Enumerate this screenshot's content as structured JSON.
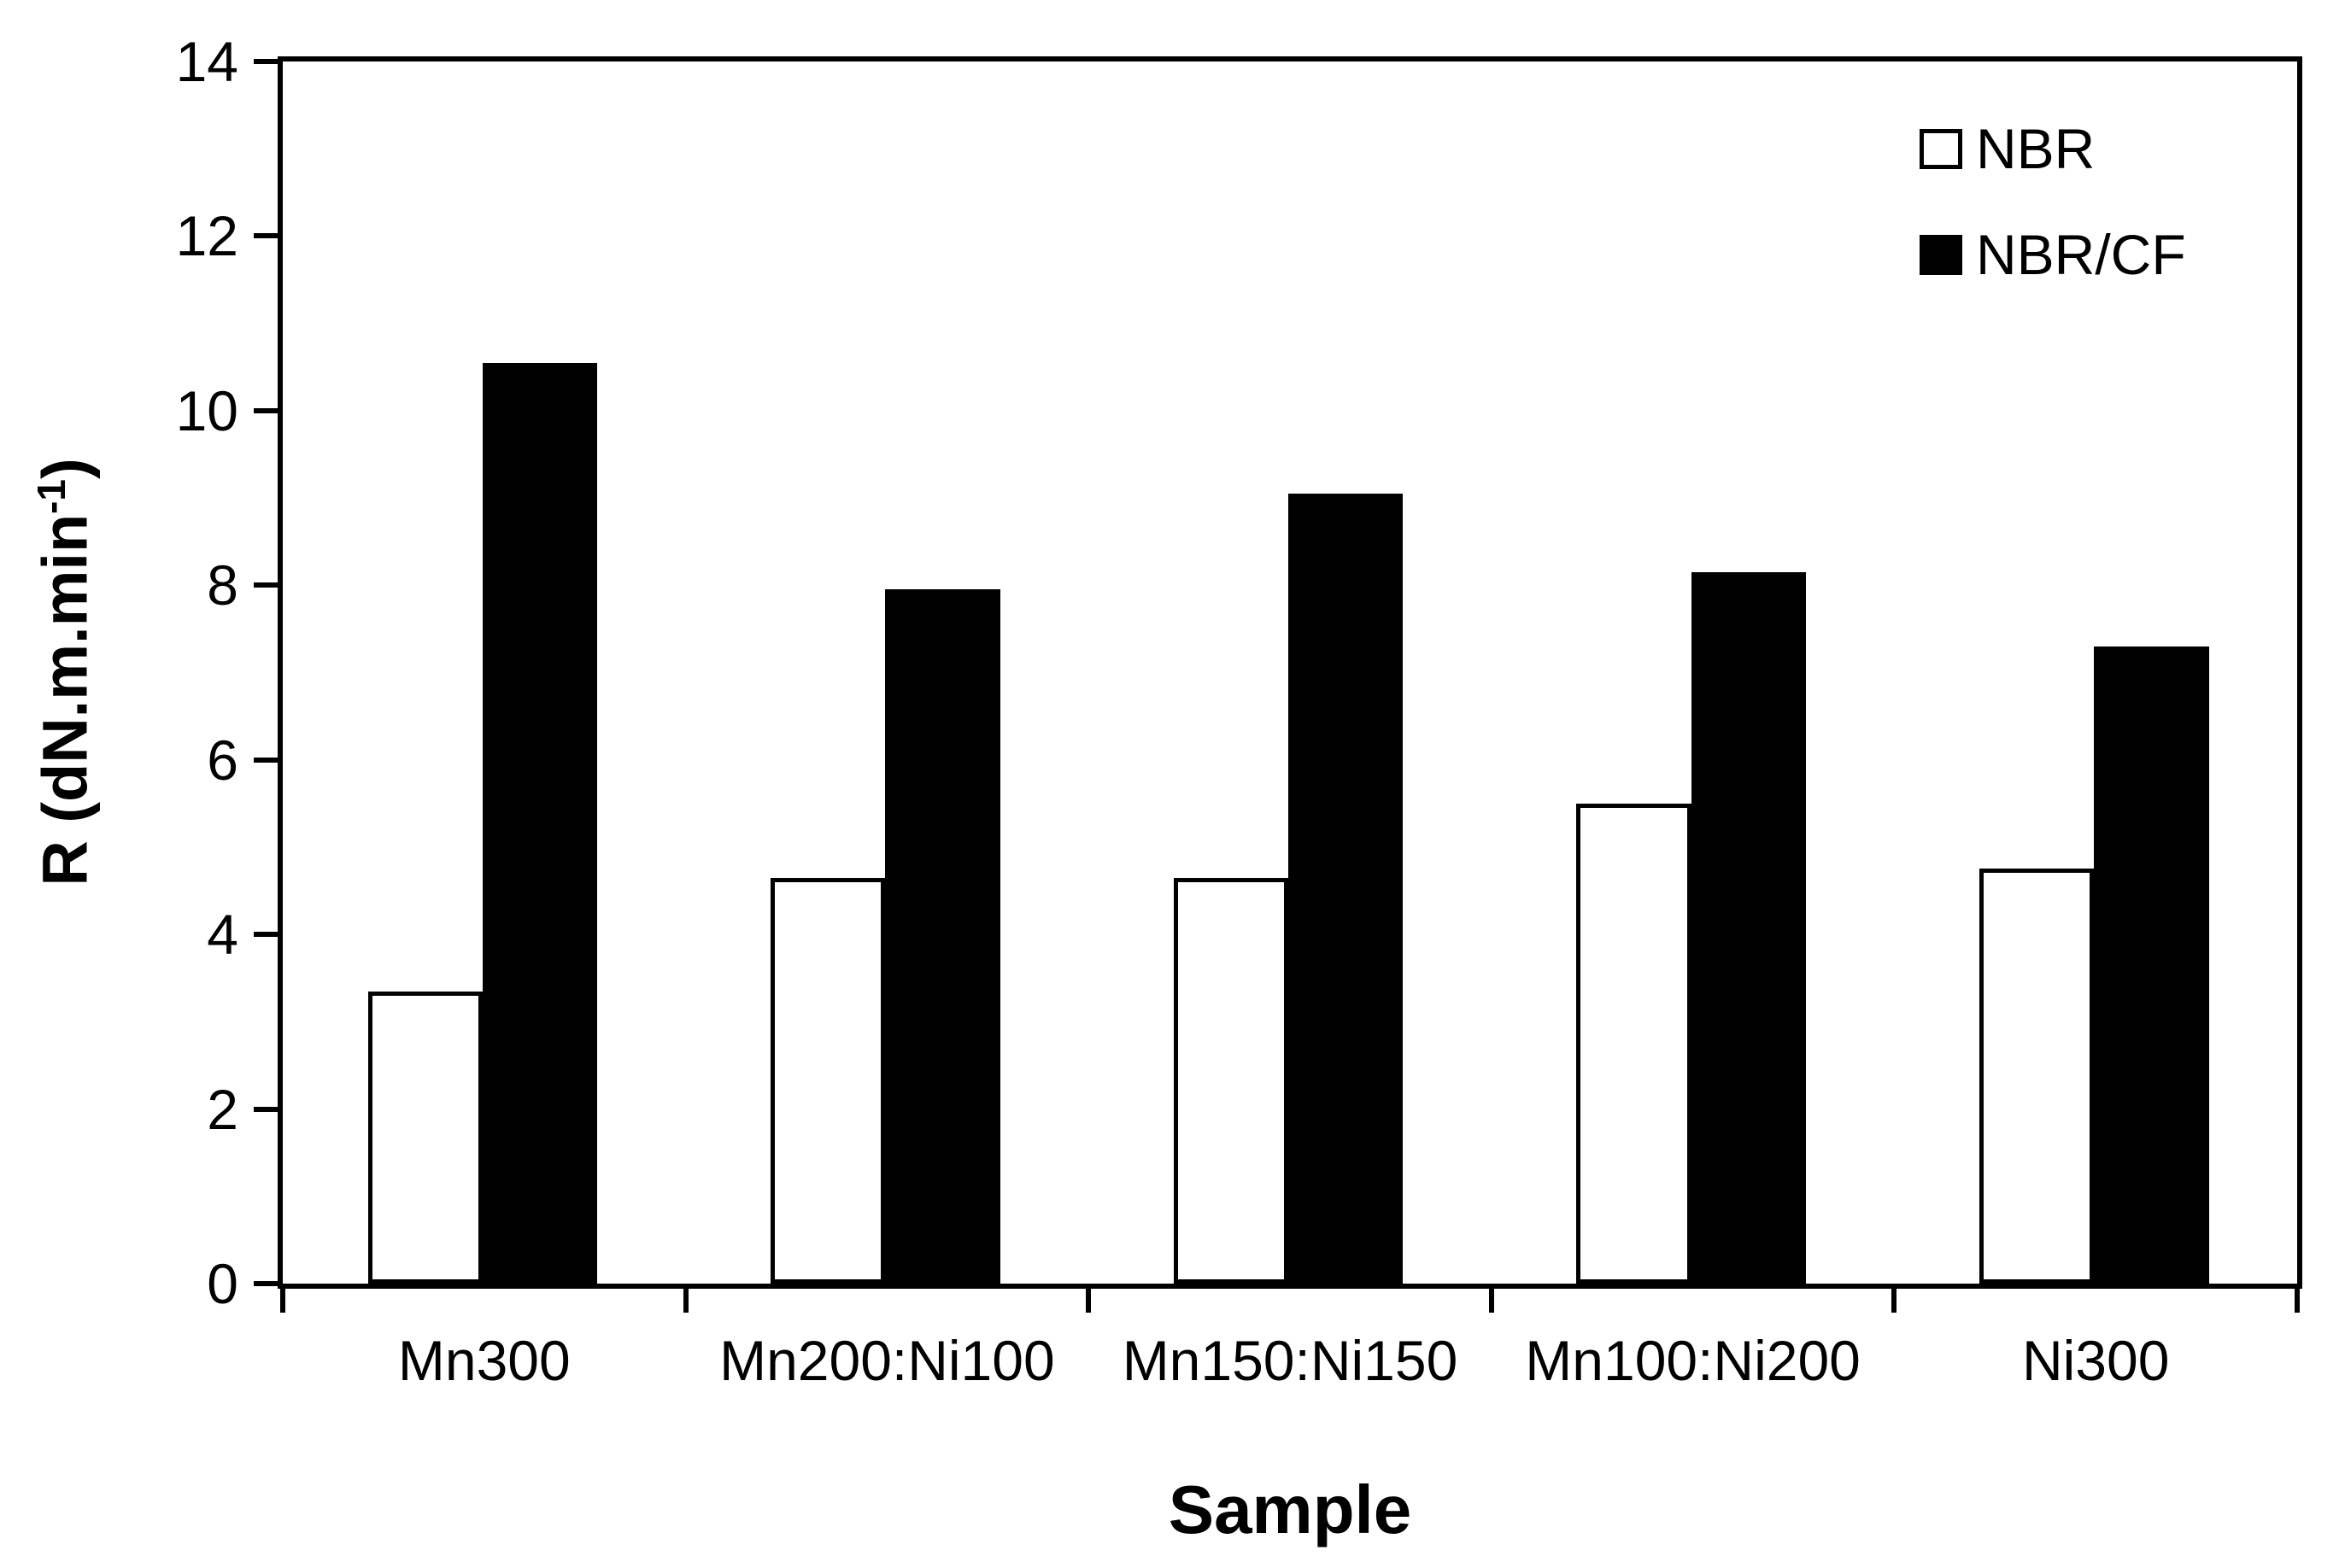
{
  "figure": {
    "background_color": "#ffffff",
    "frame_color": "#000000"
  },
  "axes": {
    "x_title": "Sample",
    "y_title_prefix": "R (dN.m.min",
    "y_title_sup": "-1",
    "y_title_suffix": ")"
  },
  "chart_data": {
    "type": "bar",
    "title": "",
    "xlabel": "Sample",
    "ylabel": "R (dN.m.min⁻¹)",
    "categories": [
      "Mn300",
      "Mn200:Ni100",
      "Mn150:Ni150",
      "Mn100:Ni200",
      "Ni300"
    ],
    "series": [
      {
        "name": "NBR",
        "fill": "#ffffff",
        "stroke": "#000000",
        "values": [
          3.35,
          4.65,
          4.65,
          5.5,
          4.75
        ]
      },
      {
        "name": "NBR/CF",
        "fill": "#000000",
        "stroke": "#000000",
        "values": [
          10.55,
          7.95,
          9.05,
          8.15,
          7.3
        ]
      }
    ],
    "ylim": [
      0,
      14
    ],
    "yticks": [
      0,
      2,
      4,
      6,
      8,
      10,
      12,
      14
    ],
    "grid": false,
    "legend_position": "upper right"
  }
}
